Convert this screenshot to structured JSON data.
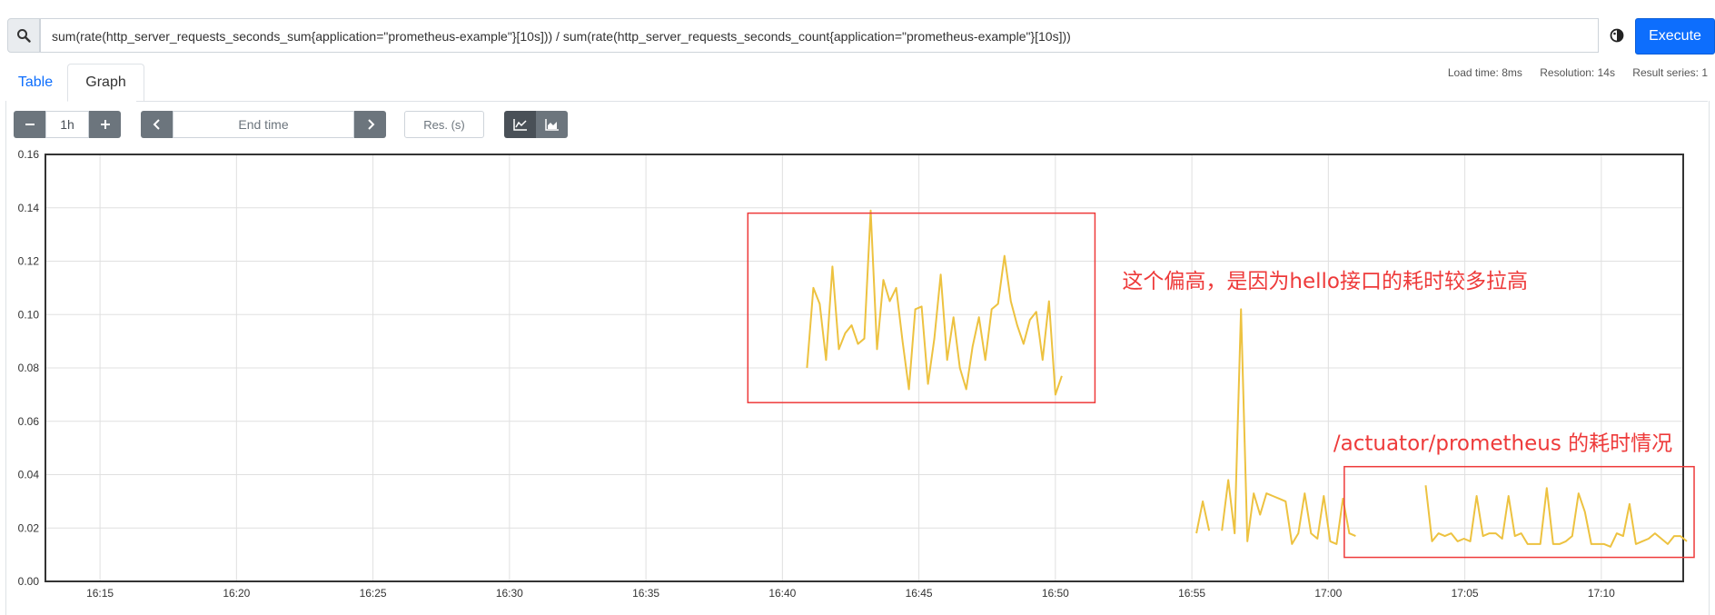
{
  "query": {
    "expression": "sum(rate(http_server_requests_seconds_sum{application=\"prometheus-example\"}[10s])) / sum(rate(http_server_requests_seconds_count{application=\"prometheus-example\"}[10s]))",
    "execute_label": "Execute"
  },
  "tabs": [
    {
      "label": "Table",
      "active": false
    },
    {
      "label": "Graph",
      "active": true
    }
  ],
  "stats": {
    "load_time": "Load time: 8ms",
    "resolution": "Resolution: 14s",
    "result_series": "Result series: 1"
  },
  "controls": {
    "range": "1h",
    "end_time_placeholder": "End time",
    "res_placeholder": "Res. (s)"
  },
  "icons": [
    "search-icon",
    "metrics-explorer-icon",
    "minus-icon",
    "plus-icon",
    "chevron-left-icon",
    "chevron-right-icon",
    "line-chart-icon",
    "stacked-chart-icon"
  ],
  "colors": {
    "series": "#edc240",
    "annotation": "#ee3a3a",
    "execute": "#0d6efd"
  },
  "chart_data": {
    "type": "line",
    "ylim": [
      0,
      0.16
    ],
    "y_ticks": [
      "0.00",
      "0.02",
      "0.04",
      "0.06",
      "0.08",
      "0.10",
      "0.12",
      "0.14",
      "0.16"
    ],
    "x_ticks": [
      "16:15",
      "16:20",
      "16:25",
      "16:30",
      "16:35",
      "16:40",
      "16:45",
      "16:50",
      "16:55",
      "17:00",
      "17:05",
      "17:10"
    ],
    "x_range": [
      "16:13",
      "17:13"
    ],
    "grid": true,
    "series": [
      {
        "values": [
          [
            "16:40:54",
            0.08
          ],
          [
            "16:41:08",
            0.11
          ],
          [
            "16:41:22",
            0.104
          ],
          [
            "16:41:36",
            0.083
          ],
          [
            "16:41:50",
            0.118
          ],
          [
            "16:42:04",
            0.087
          ],
          [
            "16:42:18",
            0.093
          ],
          [
            "16:42:32",
            0.096
          ],
          [
            "16:42:46",
            0.089
          ],
          [
            "16:43:00",
            0.091
          ],
          [
            "16:43:14",
            0.139
          ],
          [
            "16:43:28",
            0.087
          ],
          [
            "16:43:42",
            0.113
          ],
          [
            "16:43:56",
            0.105
          ],
          [
            "16:44:10",
            0.11
          ],
          [
            "16:44:24",
            0.09
          ],
          [
            "16:44:38",
            0.072
          ],
          [
            "16:44:52",
            0.102
          ],
          [
            "16:45:06",
            0.103
          ],
          [
            "16:45:20",
            0.074
          ],
          [
            "16:45:34",
            0.091
          ],
          [
            "16:45:48",
            0.115
          ],
          [
            "16:46:02",
            0.083
          ],
          [
            "16:46:16",
            0.099
          ],
          [
            "16:46:30",
            0.08
          ],
          [
            "16:46:44",
            0.072
          ],
          [
            "16:46:58",
            0.088
          ],
          [
            "16:47:12",
            0.099
          ],
          [
            "16:47:26",
            0.083
          ],
          [
            "16:47:40",
            0.102
          ],
          [
            "16:47:54",
            0.104
          ],
          [
            "16:48:08",
            0.122
          ],
          [
            "16:48:22",
            0.105
          ],
          [
            "16:48:36",
            0.096
          ],
          [
            "16:48:50",
            0.089
          ],
          [
            "16:49:04",
            0.098
          ],
          [
            "16:49:18",
            0.101
          ],
          [
            "16:49:32",
            0.083
          ],
          [
            "16:49:46",
            0.105
          ],
          [
            "16:50:00",
            0.07
          ],
          [
            "16:50:14",
            0.077
          ],
          null,
          [
            "16:55:10",
            0.018
          ],
          [
            "16:55:24",
            0.03
          ],
          [
            "16:55:38",
            0.019
          ],
          null,
          [
            "16:56:06",
            0.019
          ],
          [
            "16:56:20",
            0.038
          ],
          [
            "16:56:34",
            0.018
          ],
          [
            "16:56:48",
            0.102
          ],
          [
            "16:57:02",
            0.015
          ],
          [
            "16:57:16",
            0.033
          ],
          [
            "16:57:30",
            0.025
          ],
          [
            "16:57:44",
            0.033
          ],
          [
            "16:57:58",
            0.032
          ],
          [
            "16:58:12",
            0.031
          ],
          [
            "16:58:26",
            0.03
          ],
          [
            "16:58:40",
            0.014
          ],
          [
            "16:58:54",
            0.018
          ],
          [
            "16:59:08",
            0.033
          ],
          [
            "16:59:22",
            0.018
          ],
          [
            "16:59:36",
            0.016
          ],
          [
            "16:59:50",
            0.032
          ],
          [
            "17:00:04",
            0.015
          ],
          [
            "17:00:18",
            0.014
          ],
          [
            "17:00:32",
            0.031
          ],
          [
            "17:00:46",
            0.018
          ],
          [
            "17:01:00",
            0.017
          ],
          null,
          [
            "17:03:34",
            0.036
          ],
          [
            "17:03:48",
            0.015
          ],
          [
            "17:04:02",
            0.018
          ],
          [
            "17:04:16",
            0.017
          ],
          [
            "17:04:30",
            0.018
          ],
          [
            "17:04:44",
            0.015
          ],
          [
            "17:04:58",
            0.016
          ],
          [
            "17:05:12",
            0.015
          ],
          [
            "17:05:26",
            0.032
          ],
          [
            "17:05:40",
            0.017
          ],
          [
            "17:05:54",
            0.018
          ],
          [
            "17:06:08",
            0.018
          ],
          [
            "17:06:22",
            0.016
          ],
          [
            "17:06:36",
            0.032
          ],
          [
            "17:06:50",
            0.017
          ],
          [
            "17:07:04",
            0.018
          ],
          [
            "17:07:18",
            0.014
          ],
          [
            "17:07:32",
            0.014
          ],
          [
            "17:07:46",
            0.014
          ],
          [
            "17:08:00",
            0.035
          ],
          [
            "17:08:14",
            0.014
          ],
          [
            "17:08:28",
            0.014
          ],
          [
            "17:08:42",
            0.015
          ],
          [
            "17:08:56",
            0.017
          ],
          [
            "17:09:10",
            0.033
          ],
          [
            "17:09:24",
            0.026
          ],
          [
            "17:09:38",
            0.014
          ],
          [
            "17:09:52",
            0.014
          ],
          [
            "17:10:06",
            0.014
          ],
          [
            "17:10:20",
            0.013
          ],
          [
            "17:10:34",
            0.018
          ],
          [
            "17:10:48",
            0.017
          ],
          [
            "17:11:02",
            0.029
          ],
          [
            "17:11:16",
            0.014
          ],
          [
            "17:11:30",
            0.015
          ],
          [
            "17:11:44",
            0.016
          ],
          [
            "17:11:58",
            0.018
          ],
          [
            "17:12:12",
            0.016
          ],
          [
            "17:12:26",
            0.014
          ],
          [
            "17:12:40",
            0.017
          ],
          [
            "17:12:54",
            0.017
          ],
          [
            "17:13:08",
            0.015
          ]
        ]
      }
    ],
    "annotations": [
      {
        "text": "这个偏高，是因为hello接口的耗时较多拉高",
        "box_x": [
          "16:38:44",
          "16:51:27"
        ],
        "box_y": [
          0.067,
          0.138
        ]
      },
      {
        "text": "/actuator/prometheus 的耗时情况",
        "box_x": [
          "17:00:35",
          "17:13:24"
        ],
        "box_y": [
          0.009,
          0.043
        ]
      }
    ]
  }
}
